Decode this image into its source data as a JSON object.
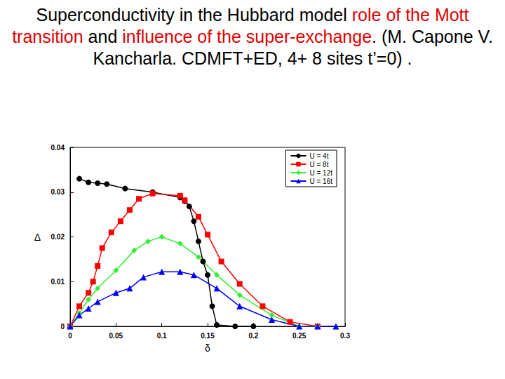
{
  "chart_data": {
    "type": "line",
    "title": [
      {
        "text": "Superconductivity in the Hubbard model ",
        "color": "#000000"
      },
      {
        "text": "role of the Mott transition",
        "color": "#e00000"
      },
      {
        "text": " and ",
        "color": "#000000"
      },
      {
        "text": "influence of the super-exchange",
        "color": "#e00000"
      },
      {
        "text": ". (M. Capone V. Kancharla. CDMFT+ED, 4+ 8 sites  t’=0) .",
        "color": "#000000"
      }
    ],
    "x_label": "δ",
    "y_label": "Δ",
    "xlim": [
      0,
      0.3
    ],
    "xticks": [
      0,
      0.05,
      0.1,
      0.15,
      0.2,
      0.25,
      0.3
    ],
    "ylim": [
      0,
      0.04
    ],
    "yticks": [
      0,
      0.01,
      0.02,
      0.03,
      0.04
    ],
    "legend": "upper right",
    "grid": false,
    "series": [
      {
        "name": "U = 4t",
        "color": "#000000",
        "marker": "circle",
        "x": [
          0.01,
          0.02,
          0.03,
          0.04,
          0.06,
          0.09,
          0.12,
          0.125,
          0.13,
          0.135,
          0.14,
          0.145,
          0.15,
          0.155,
          0.16,
          0.18,
          0.2
        ],
        "values": [
          0.033,
          0.0322,
          0.032,
          0.0318,
          0.0308,
          0.03,
          0.0288,
          0.028,
          0.0268,
          0.0235,
          0.019,
          0.0145,
          0.0115,
          0.0045,
          0.0003,
          0,
          0
        ]
      },
      {
        "name": "U = 8t",
        "color": "#ff0000",
        "marker": "square",
        "x": [
          0,
          0.01,
          0.02,
          0.025,
          0.03,
          0.035,
          0.045,
          0.055,
          0.065,
          0.075,
          0.09,
          0.12,
          0.125,
          0.14,
          0.15,
          0.165,
          0.185,
          0.21,
          0.24,
          0.27
        ],
        "values": [
          0,
          0.0045,
          0.0075,
          0.01,
          0.0135,
          0.0175,
          0.021,
          0.0235,
          0.026,
          0.0285,
          0.0297,
          0.0292,
          0.0282,
          0.0245,
          0.0205,
          0.0145,
          0.0095,
          0.0045,
          0.001,
          0
        ]
      },
      {
        "name": "U = 12t",
        "color": "#33ee33",
        "marker": "diamond",
        "x": [
          0,
          0.01,
          0.02,
          0.03,
          0.05,
          0.07,
          0.085,
          0.1,
          0.12,
          0.14,
          0.16,
          0.185,
          0.22,
          0.25,
          0.27
        ],
        "values": [
          0,
          0.003,
          0.006,
          0.0085,
          0.0125,
          0.017,
          0.019,
          0.02,
          0.0185,
          0.0155,
          0.0115,
          0.007,
          0.0025,
          0,
          0
        ]
      },
      {
        "name": "U = 16t",
        "color": "#0000ff",
        "marker": "triangle",
        "x": [
          0,
          0.01,
          0.02,
          0.03,
          0.05,
          0.065,
          0.08,
          0.1,
          0.12,
          0.135,
          0.16,
          0.185,
          0.22,
          0.25,
          0.27,
          0.29
        ],
        "values": [
          0,
          0.0025,
          0.004,
          0.0055,
          0.0075,
          0.0085,
          0.011,
          0.0122,
          0.0122,
          0.0115,
          0.0085,
          0.0045,
          0.0015,
          0,
          0,
          0
        ]
      }
    ]
  }
}
